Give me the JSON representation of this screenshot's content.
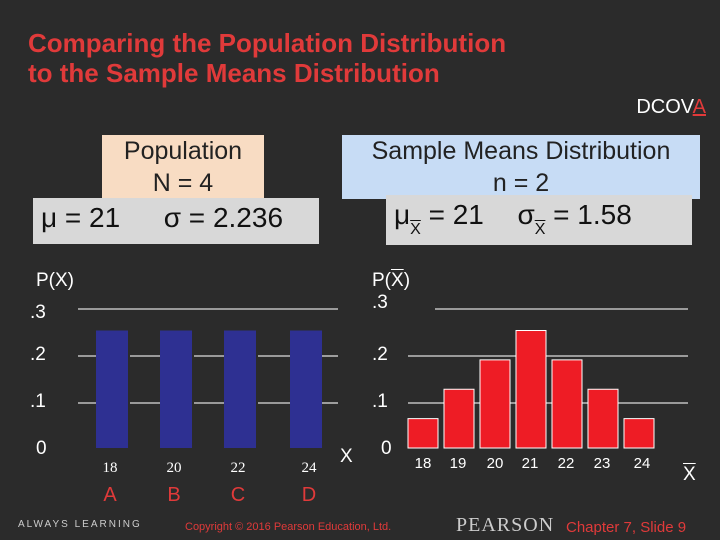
{
  "slide": {
    "title_line1": "Comparing the Population Distribution",
    "title_line2": "to the Sample Means Distribution",
    "tag_prefix": "DCOV",
    "tag_highlight": "A"
  },
  "population": {
    "label": "Population",
    "n": "N = 4",
    "mu": "μ = 21",
    "sigma": "σ = 2.236",
    "ylabel": "P(X)",
    "yticks": [
      ".3",
      ".2",
      ".1",
      "0"
    ],
    "categories": [
      "18",
      "20",
      "22",
      "24"
    ],
    "letters": [
      "A",
      "B",
      "C",
      "D"
    ],
    "xlabel": "X"
  },
  "sample": {
    "label": "Sample Means Distribution",
    "n": "n = 2",
    "mu_sym": "μ",
    "mu_sub": "X",
    "mu_val": "= 21",
    "sigma_sym": "σ",
    "sigma_sub": "X",
    "sigma_val": "= 1.58",
    "ylabel_prefix": "P(",
    "ylabel_var": "X",
    "ylabel_suffix": ")",
    "yticks": [
      ".3",
      ".2",
      ".1",
      "0"
    ],
    "categories": [
      "18",
      "19",
      "20",
      "21",
      "22",
      "23",
      "24"
    ],
    "xlabel": "X"
  },
  "colors": {
    "population_bars": "#2e3092",
    "sample_bars": "#ee1c25",
    "title": "#e03a3a"
  },
  "chart_data": [
    {
      "type": "bar",
      "categories": [
        "18",
        "20",
        "22",
        "24"
      ],
      "values": [
        0.25,
        0.25,
        0.25,
        0.25
      ],
      "ylim": [
        0,
        0.3
      ]
    },
    {
      "type": "bar",
      "categories": [
        "18",
        "19",
        "20",
        "21",
        "22",
        "23",
        "24"
      ],
      "values": [
        0.0625,
        0.125,
        0.1875,
        0.25,
        0.1875,
        0.125,
        0.0625
      ],
      "ylim": [
        0,
        0.3
      ]
    }
  ],
  "footer": {
    "left": "ALWAYS LEARNING",
    "copyright": "Copyright © 2016 Pearson Education, Ltd.",
    "brand": "PEARSON",
    "slide": "Chapter 7, Slide 9"
  }
}
